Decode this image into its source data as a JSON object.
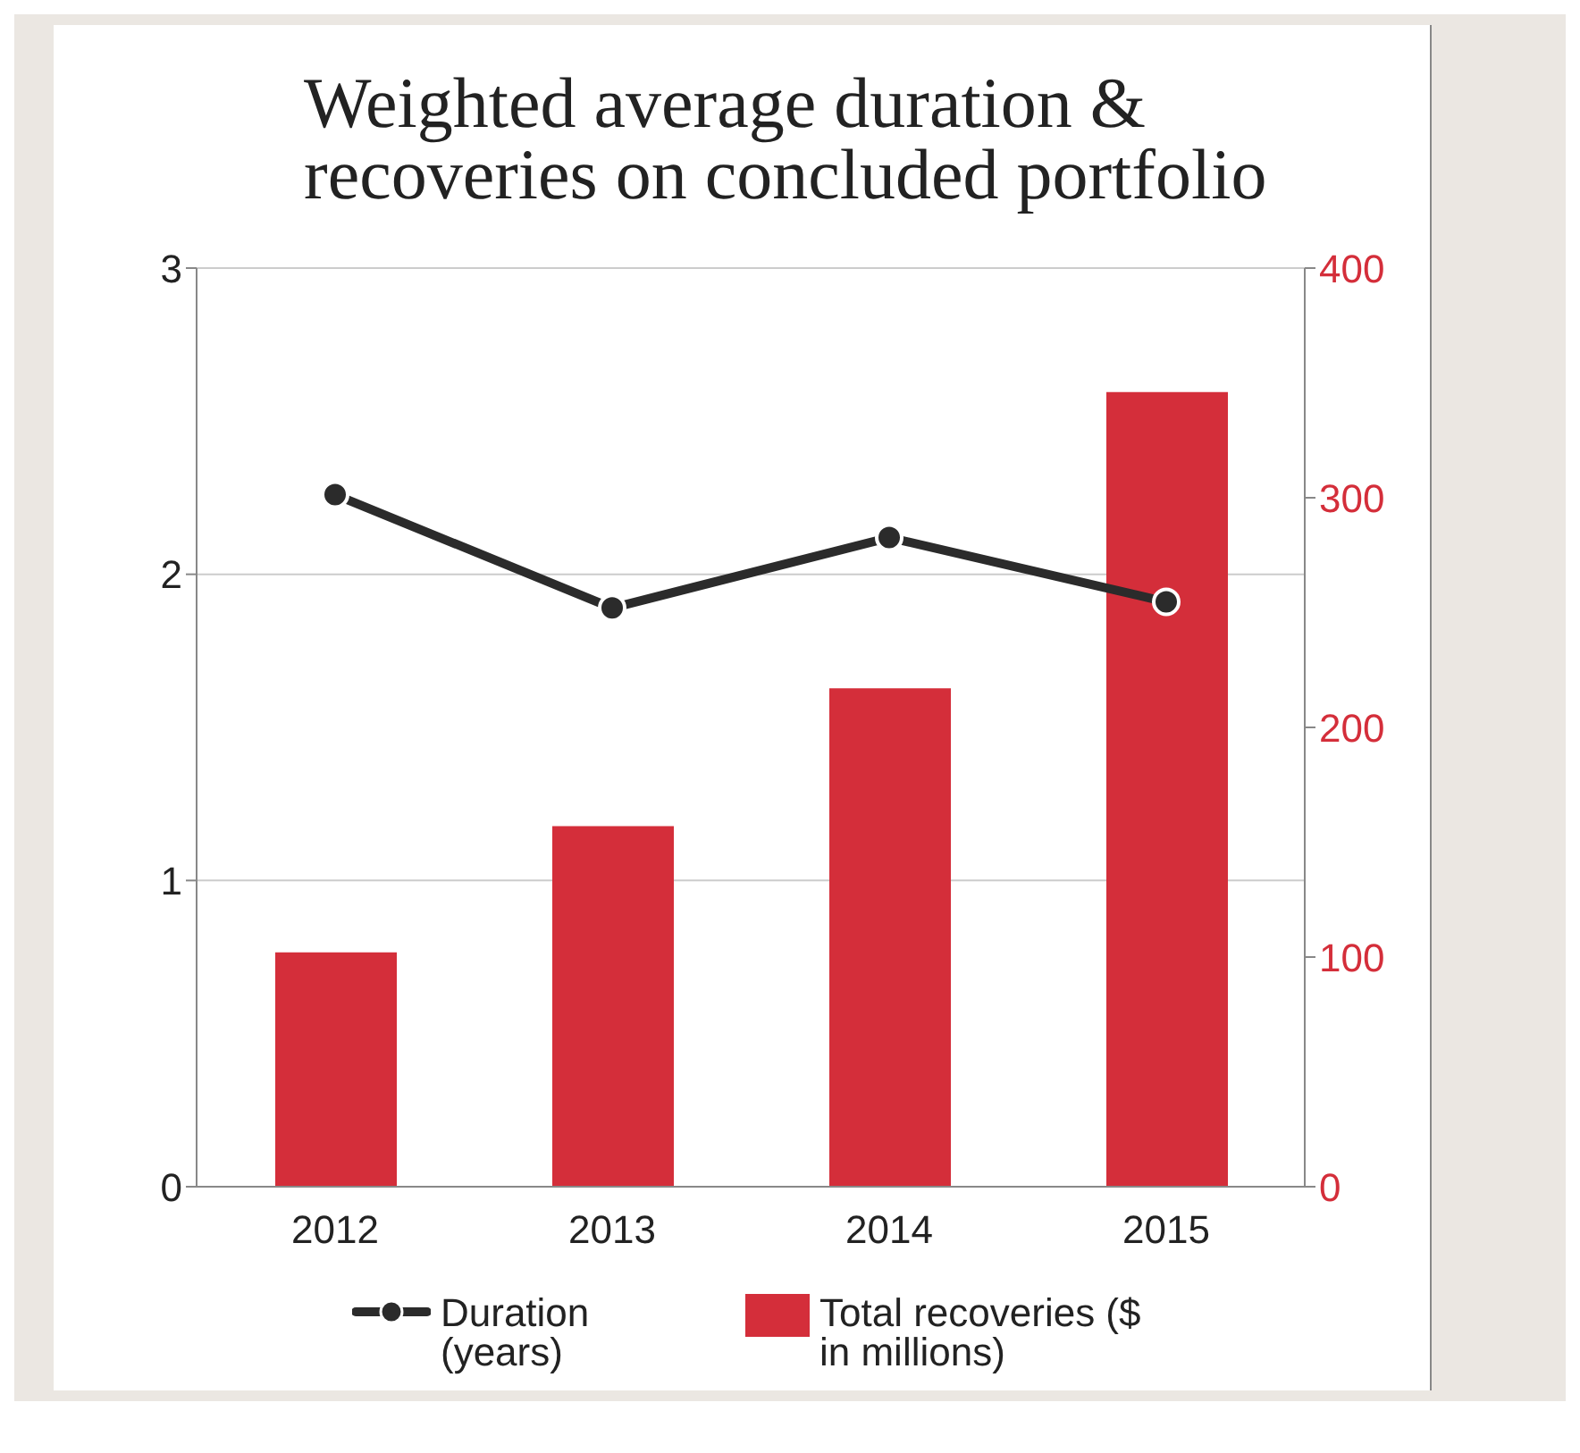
{
  "chart_data": {
    "type": "bar",
    "title": "Weighted average duration & recoveries on concluded portfolio",
    "categories": [
      "2012",
      "2013",
      "2014",
      "2015"
    ],
    "series": [
      {
        "name": "Duration (years)",
        "type": "line",
        "color": "#2b2b2b",
        "values": [
          2.26,
          1.89,
          2.12,
          1.91
        ]
      },
      {
        "name": "Total recoveries ($ in millions)",
        "axis": "y2",
        "color": "#d42e3a",
        "values": [
          102,
          157,
          217,
          346
        ]
      }
    ],
    "ylim": [
      0,
      3
    ],
    "yticks": [
      0,
      1,
      2,
      3
    ],
    "y2lim": [
      0,
      400
    ],
    "y2ticks": [
      0,
      100,
      200,
      300,
      400
    ],
    "grid": "y",
    "legend": "bottom",
    "marker": "circle",
    "line_style": "solid"
  }
}
